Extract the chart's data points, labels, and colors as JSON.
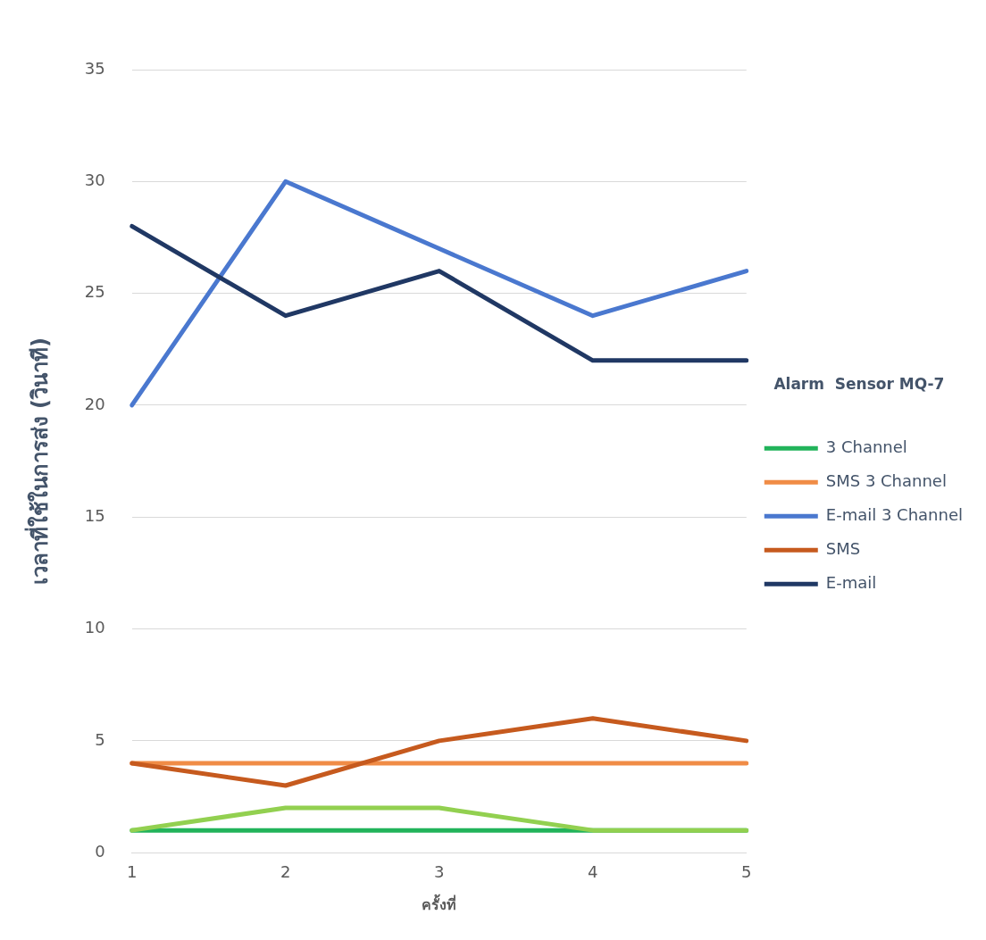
{
  "chart_data": {
    "type": "line",
    "categories": [
      "1",
      "2",
      "3",
      "4",
      "5"
    ],
    "xlabel": "ครั้งที่",
    "ylabel": "เวลาที่ใช้ในการส่ง (วินาที)",
    "legend_title": "Alarm  Sensor MQ-7",
    "ylim": [
      0,
      35
    ],
    "yticks": [
      0,
      5,
      10,
      15,
      20,
      25,
      30,
      35
    ],
    "grid": "y",
    "legend": "right",
    "marker": "none",
    "line_style": "solid",
    "series": [
      {
        "name": "3 Channel",
        "color": "#21b35a",
        "values": [
          1,
          1,
          1,
          1,
          1
        ]
      },
      {
        "name": "SMS 3 Channel",
        "color": "#f08c46",
        "values": [
          4,
          4,
          4,
          4,
          4
        ]
      },
      {
        "name": "E-mail 3 Channel",
        "color": "#4a78cf",
        "values": [
          20,
          30,
          27,
          24,
          26
        ]
      },
      {
        "color": "#92d050",
        "values": [
          1,
          2,
          2,
          1,
          1
        ]
      },
      {
        "name": "SMS",
        "color": "#c65a1e",
        "values": [
          4,
          3,
          5,
          6,
          5
        ]
      },
      {
        "name": "E-mail",
        "color": "#203864",
        "values": [
          28,
          24,
          26,
          22,
          22
        ]
      }
    ]
  }
}
